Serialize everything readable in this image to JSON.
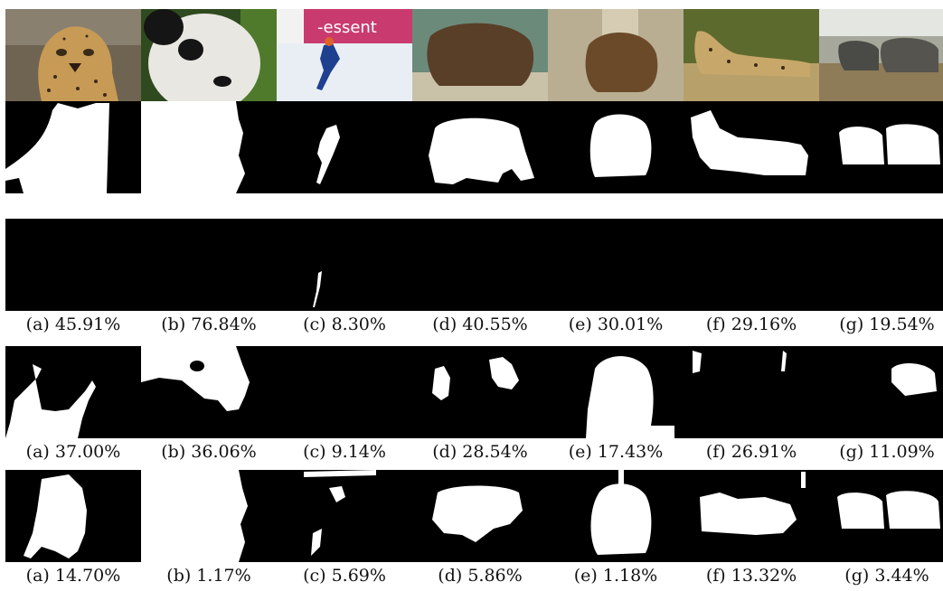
{
  "figure": {
    "columns": [
      {
        "letter": "(a)",
        "subject": "cheetah portrait"
      },
      {
        "letter": "(b)",
        "subject": "panda"
      },
      {
        "letter": "(c)",
        "subject": "speed skater"
      },
      {
        "letter": "(d)",
        "subject": "brown bear in water"
      },
      {
        "letter": "(e)",
        "subject": "brown bear by tree"
      },
      {
        "letter": "(f)",
        "subject": "cheetah lying in grass"
      },
      {
        "letter": "(g)",
        "subject": "elephants"
      }
    ],
    "caption_rows": [
      {
        "labels": [
          "(a) 45.91%",
          "(b) 76.84%",
          "(c) 8.30%",
          "(d) 40.55%",
          "(e) 30.01%",
          "(f) 29.16%",
          "(g) 19.54%"
        ]
      },
      {
        "labels": [
          "(a) 37.00%",
          "(b) 36.06%",
          "(c) 9.14%",
          "(d) 28.54%",
          "(e) 17.43%",
          "(f) 26.91%",
          "(g) 11.09%"
        ]
      },
      {
        "labels": [
          "(a) 14.70%",
          "(b) 1.17%",
          "(c) 5.69%",
          "(d) 5.86%",
          "(e) 1.18%",
          "(f) 13.32%",
          "(g) 3.44%"
        ]
      }
    ],
    "colors": {
      "mask_fg": "#ffffff",
      "mask_bg": "#000000",
      "caption_text": "#111111"
    }
  }
}
